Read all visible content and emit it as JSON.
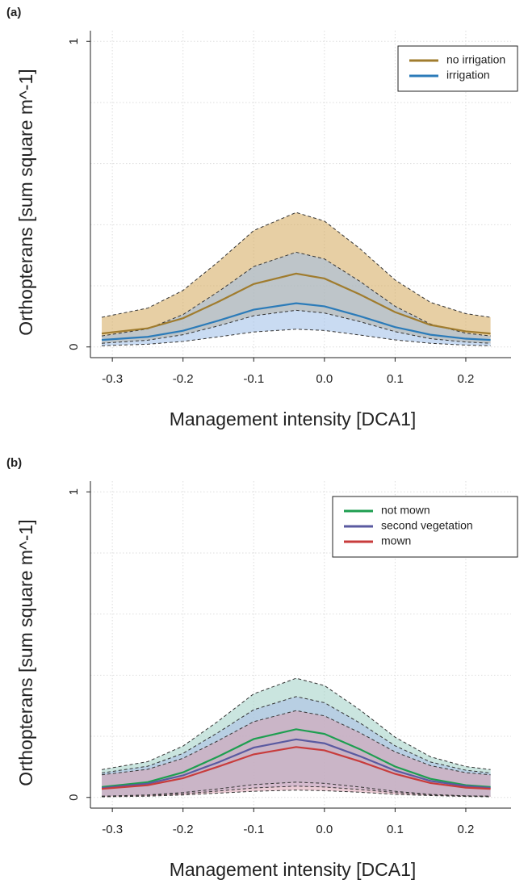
{
  "chart_data": [
    {
      "type": "line",
      "label": "(a)",
      "xlabel": "Management intensity [DCA1]",
      "ylabel": "Orthopterans [sum square m^-1]",
      "xlim": [
        -0.331,
        0.264
      ],
      "ylim": [
        -0.035,
        1.035
      ],
      "xticks": [
        -0.3,
        -0.2,
        -0.1,
        {
          "value": 0,
          "label": "0.0"
        },
        0.1,
        0.2
      ],
      "yticks": [
        0,
        1
      ],
      "ygrid": [
        0.2,
        0.4,
        0.6,
        0.8
      ],
      "grid": true,
      "legend": "top-right",
      "x": [
        -0.315,
        -0.25,
        -0.2,
        -0.15,
        -0.1,
        -0.04,
        0,
        0.05,
        0.1,
        0.15,
        0.2,
        0.235
      ],
      "series": [
        {
          "name": "no irrigation",
          "color": "#a07c2e",
          "band_color": "#d4a85a",
          "values": [
            0.044,
            0.061,
            0.094,
            0.148,
            0.206,
            0.24,
            0.224,
            0.172,
            0.114,
            0.072,
            0.051,
            0.044
          ],
          "upper": [
            0.097,
            0.127,
            0.185,
            0.279,
            0.381,
            0.44,
            0.412,
            0.322,
            0.219,
            0.146,
            0.109,
            0.097
          ],
          "lower": [
            0.012,
            0.022,
            0.04,
            0.069,
            0.102,
            0.12,
            0.111,
            0.083,
            0.05,
            0.027,
            0.016,
            0.012
          ]
        },
        {
          "name": "irrigation",
          "color": "#2b7bb9",
          "band_color": "#9dbde8",
          "values": [
            0.023,
            0.033,
            0.053,
            0.086,
            0.122,
            0.143,
            0.133,
            0.101,
            0.065,
            0.04,
            0.027,
            0.023
          ],
          "upper": [
            0.036,
            0.059,
            0.106,
            0.181,
            0.263,
            0.31,
            0.288,
            0.215,
            0.133,
            0.075,
            0.045,
            0.036
          ],
          "lower": [
            0.004,
            0.009,
            0.018,
            0.033,
            0.049,
            0.058,
            0.054,
            0.039,
            0.023,
            0.012,
            0.006,
            0.004
          ]
        }
      ]
    },
    {
      "type": "line",
      "label": "(b)",
      "xlabel": "Management intensity [DCA1]",
      "ylabel": "Orthopterans [sum square m^-1]",
      "xlim": [
        -0.331,
        0.264
      ],
      "ylim": [
        -0.035,
        1.035
      ],
      "xticks": [
        -0.3,
        -0.2,
        -0.1,
        {
          "value": 0,
          "label": "0.0"
        },
        0.1,
        0.2
      ],
      "yticks": [
        0,
        1
      ],
      "ygrid": [
        0.2,
        0.4,
        0.6,
        0.8
      ],
      "grid": true,
      "legend": "top-right",
      "x": [
        -0.315,
        -0.25,
        -0.2,
        -0.15,
        -0.1,
        -0.04,
        0,
        0.05,
        0.1,
        0.15,
        0.2,
        0.235
      ],
      "series": [
        {
          "name": "not mown",
          "color": "#1e9e50",
          "band_color": "#9fcfc4",
          "values": [
            0.034,
            0.05,
            0.082,
            0.134,
            0.191,
            0.223,
            0.208,
            0.158,
            0.101,
            0.061,
            0.04,
            0.034
          ],
          "upper": [
            0.091,
            0.117,
            0.168,
            0.25,
            0.339,
            0.39,
            0.366,
            0.287,
            0.197,
            0.133,
            0.101,
            0.091
          ],
          "lower": [
            0.004,
            0.008,
            0.016,
            0.028,
            0.042,
            0.05,
            0.046,
            0.034,
            0.02,
            0.01,
            0.005,
            0.004
          ]
        },
        {
          "name": "second vegetation",
          "color": "#5a5aa0",
          "band_color": "#a9bde6",
          "values": [
            0.031,
            0.045,
            0.072,
            0.115,
            0.163,
            0.19,
            0.177,
            0.135,
            0.088,
            0.054,
            0.037,
            0.031
          ],
          "upper": [
            0.08,
            0.102,
            0.144,
            0.213,
            0.287,
            0.33,
            0.31,
            0.244,
            0.169,
            0.116,
            0.089,
            0.08
          ],
          "lower": [
            0.004,
            0.007,
            0.012,
            0.021,
            0.031,
            0.037,
            0.034,
            0.026,
            0.016,
            0.008,
            0.005,
            0.004
          ]
        },
        {
          "name": "mown",
          "color": "#c83c3c",
          "band_color": "#d9a0b0",
          "values": [
            0.028,
            0.04,
            0.063,
            0.101,
            0.141,
            0.165,
            0.154,
            0.118,
            0.077,
            0.047,
            0.032,
            0.028
          ],
          "upper": [
            0.074,
            0.092,
            0.128,
            0.186,
            0.248,
            0.284,
            0.267,
            0.212,
            0.149,
            0.104,
            0.081,
            0.074
          ],
          "lower": [
            0.002,
            0.004,
            0.008,
            0.014,
            0.02,
            0.024,
            0.022,
            0.017,
            0.01,
            0.006,
            0.003,
            0.002
          ]
        }
      ]
    }
  ]
}
